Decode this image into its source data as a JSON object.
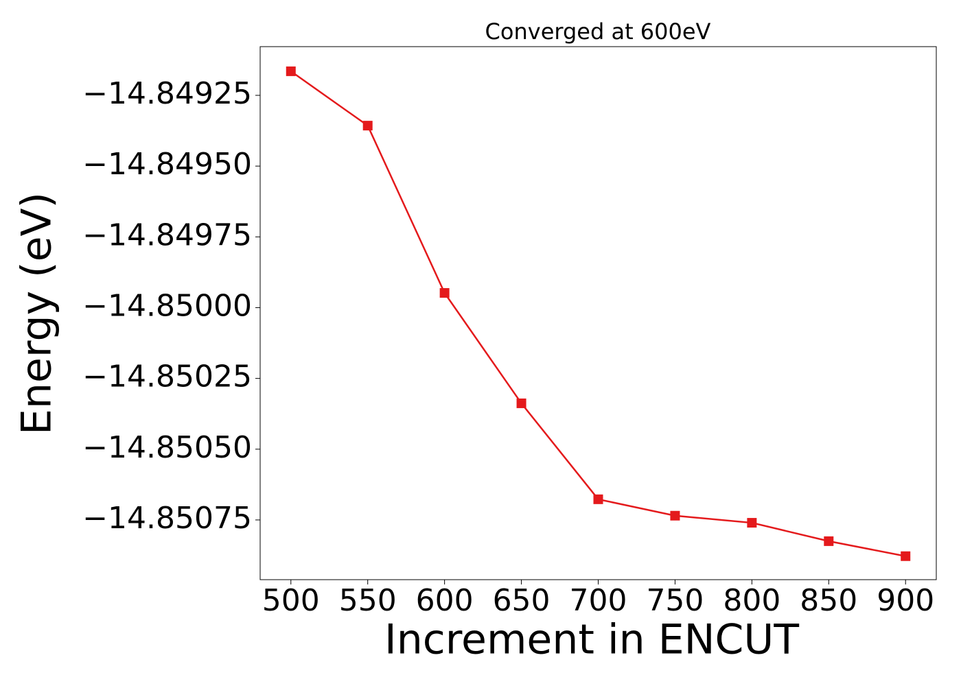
{
  "chart_data": {
    "type": "line",
    "title": "Converged at 600eV",
    "x_label": "Increment in ENCUT",
    "y_label": "Energy (eV)",
    "x": [
      500,
      550,
      600,
      650,
      700,
      750,
      800,
      850,
      900
    ],
    "series": [
      {
        "color": "#e41a1c",
        "marker": "square",
        "values": [
          -14.849165,
          -14.849357,
          -14.849948,
          -14.850338,
          -14.850677,
          -14.850735,
          -14.85076,
          -14.850825,
          -14.850878
        ]
      }
    ],
    "xlim": [
      480,
      920
    ],
    "xticks": [
      500,
      550,
      600,
      650,
      700,
      750,
      800,
      850,
      900
    ],
    "ylim": [
      -14.850961,
      -14.849078
    ],
    "yticks": [
      {
        "value": -14.85075,
        "label": "−14.85075"
      },
      {
        "value": -14.8505,
        "label": "−14.85050"
      },
      {
        "value": -14.85025,
        "label": "−14.85025"
      },
      {
        "value": -14.85,
        "label": "−14.85000"
      },
      {
        "value": -14.84975,
        "label": "−14.84975"
      },
      {
        "value": -14.8495,
        "label": "−14.84950"
      },
      {
        "value": -14.84925,
        "label": "−14.84925"
      }
    ],
    "grid": false
  }
}
